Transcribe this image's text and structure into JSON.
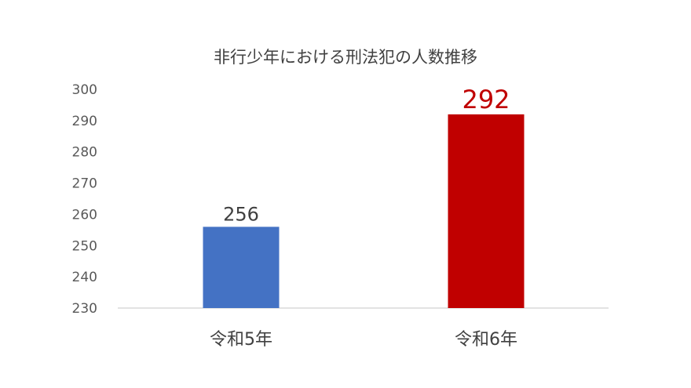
{
  "chart_data": {
    "type": "bar",
    "title": "非行少年における刑法犯の人数推移",
    "categories": [
      "令和5年",
      "令和6年"
    ],
    "values": [
      256,
      292
    ],
    "data_labels": [
      "256",
      "292"
    ],
    "bar_colors": [
      "#4472C4",
      "#C00000"
    ],
    "data_label_colors": [
      "#404040",
      "#C00000"
    ],
    "xlabel": "",
    "ylabel": "",
    "ylim": [
      230,
      300
    ],
    "yticks": [
      230,
      240,
      250,
      260,
      270,
      280,
      290,
      300
    ],
    "grid": false,
    "legend": "none"
  }
}
